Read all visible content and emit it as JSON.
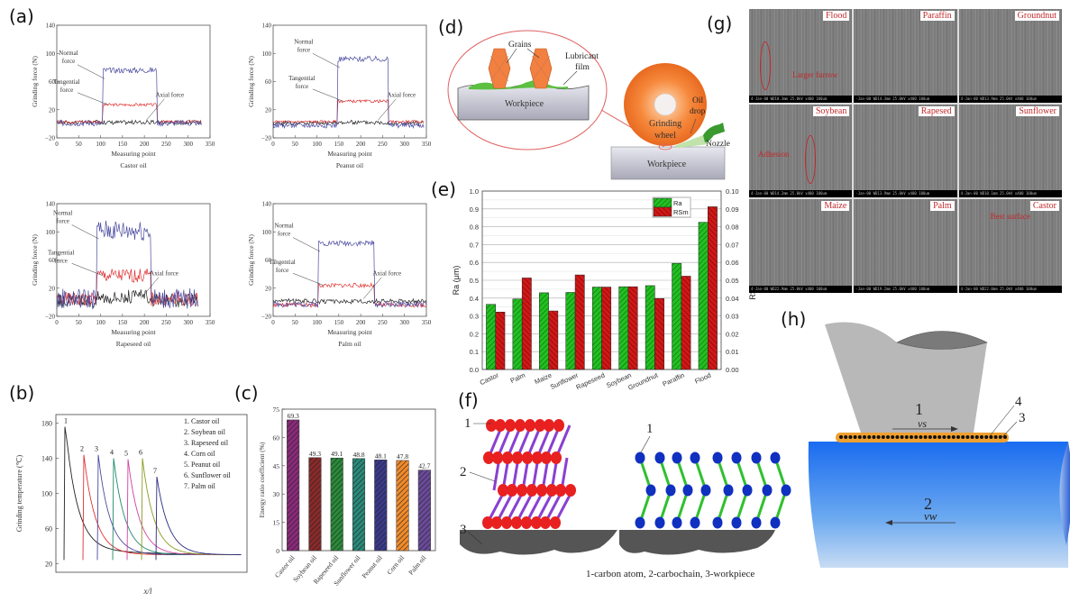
{
  "panels": {
    "a": "(a)",
    "b": "(b)",
    "c": "(c)",
    "d": "(d)",
    "e": "(e)",
    "f": "(f)",
    "g": "(g)",
    "h": "(h)"
  },
  "chart_data": [
    {
      "id": "a",
      "type": "line",
      "subplots": [
        {
          "caption": "Castor oil",
          "xlabel": "Measuring point",
          "ylabel": "Grinding force (N)",
          "xlim": [
            0,
            350
          ],
          "ylim": [
            -20,
            140
          ],
          "xticks": [
            0,
            50,
            100,
            150,
            200,
            250,
            300,
            350
          ],
          "yticks": [
            -20,
            20,
            60,
            100,
            140
          ],
          "plateau": [
            105,
            228
          ],
          "levels": {
            "normal": 76,
            "tangential": 27,
            "axial": 2
          },
          "baseline": {
            "normal": 1,
            "tangential": 3,
            "axial": 2
          },
          "noise": {
            "normal": 4,
            "tangential": 2,
            "axial": 3
          },
          "xmax_data": 330
        },
        {
          "caption": "Peanut oil",
          "xlabel": "Measuring point",
          "ylabel": "Grinding force (N)",
          "xlim": [
            0,
            350
          ],
          "ylim": [
            -20,
            140
          ],
          "xticks": [
            0,
            50,
            100,
            150,
            200,
            250,
            300,
            350
          ],
          "yticks": [
            -20,
            20,
            60,
            100,
            140
          ],
          "plateau": [
            148,
            263
          ],
          "levels": {
            "normal": 92,
            "tangential": 32,
            "axial": 2
          },
          "baseline": {
            "normal": -2,
            "tangential": 3,
            "axial": 1
          },
          "noise": {
            "normal": 4,
            "tangential": 2,
            "axial": 3
          },
          "xmax_data": 345
        },
        {
          "caption": "Rapeseed oil",
          "xlabel": "Measuring point",
          "ylabel": "Grinding force (N)",
          "xlim": [
            0,
            350
          ],
          "ylim": [
            -20,
            140
          ],
          "xticks": [
            0,
            50,
            100,
            150,
            200,
            250,
            300,
            350
          ],
          "yticks": [
            -20,
            20,
            60,
            100,
            140
          ],
          "plateau": [
            92,
            215
          ],
          "levels": {
            "normal": 102,
            "tangential": 38,
            "axial": 8
          },
          "baseline": {
            "normal": 5,
            "tangential": 4,
            "axial": 2
          },
          "noise": {
            "normal": 15,
            "tangential": 10,
            "axial": 10
          },
          "xmax_data": 322
        },
        {
          "caption": "Palm oil",
          "xlabel": "Measuring point",
          "ylabel": "Grinding force (N)",
          "xlim": [
            0,
            350
          ],
          "ylim": [
            -20,
            140
          ],
          "xticks": [
            0,
            50,
            100,
            150,
            200,
            250,
            300,
            350
          ],
          "yticks": [
            -20,
            20,
            60,
            100,
            140
          ],
          "plateau": [
            103,
            230
          ],
          "levels": {
            "normal": 84,
            "tangential": 24,
            "axial": 1
          },
          "baseline": {
            "normal": -3,
            "tangential": -4,
            "axial": 2
          },
          "noise": {
            "normal": 4,
            "tangential": 3,
            "axial": 3
          },
          "xmax_data": 350
        }
      ],
      "series_labels": {
        "normal": "Normal force",
        "normal_l1": "Normal",
        "normal_l2": "force",
        "normal_alt_l1": "Normal",
        "tangential_l1": "Tangential",
        "tangential_l2": "force",
        "axial": "Axial force"
      },
      "colors": {
        "normal": "#4a4aa0",
        "tangential": "#e03030",
        "axial": "#222222"
      }
    },
    {
      "id": "b",
      "type": "line",
      "xlabel": "x/l",
      "ylabel": "Grinding temperature (℃)",
      "ylim": [
        10,
        190
      ],
      "yticks": [
        20,
        60,
        100,
        140,
        180
      ],
      "series": [
        {
          "name": "1. Castor oil",
          "num": "1",
          "peak": 176,
          "color": "#222222"
        },
        {
          "name": "2. Soybean oil",
          "num": "2",
          "peak": 144,
          "color": "#e03030"
        },
        {
          "name": "3. Rapeseed oil",
          "num": "3",
          "peak": 144,
          "color": "#4a4aa0"
        },
        {
          "name": "4. Corn oil",
          "num": "4",
          "peak": 140,
          "color": "#1f8a6a"
        },
        {
          "name": "5. Peanut oil",
          "num": "5",
          "peak": 139,
          "color": "#d040a0"
        },
        {
          "name": "6. Sunflower oil",
          "num": "6",
          "peak": 140,
          "color": "#8a9a20"
        },
        {
          "name": "7. Palm oil",
          "num": "7",
          "peak": 119,
          "color": "#2a2a80"
        }
      ],
      "floor": 30
    },
    {
      "id": "c",
      "type": "bar",
      "ylabel": "Energy ratio coefficient (%)",
      "ylim": [
        0,
        75
      ],
      "yticks": [
        0,
        15,
        30,
        45,
        60,
        75
      ],
      "categories": [
        "Castor oil",
        "Soybean oil",
        "Rapeseed oil",
        "Sunflower oil",
        "Peanut oil",
        "Corn oil",
        "Palm oil"
      ],
      "values": [
        69.3,
        49.3,
        49.1,
        48.8,
        48.1,
        47.8,
        42.7
      ],
      "labels": [
        "69.3",
        "49.3",
        "49.1",
        "48.8",
        "48.1",
        "47.8",
        "42.7"
      ],
      "colors": [
        "#8a2a7a",
        "#8a2a2a",
        "#2a8a3a",
        "#2a8a7a",
        "#3a3a8a",
        "#f08a2a",
        "#6a4a9a"
      ]
    },
    {
      "id": "e",
      "type": "bar",
      "ylabel": "Ra (μm)",
      "ylabel2": "RSm (mm)",
      "ylim": [
        0,
        1.0
      ],
      "ylim2": [
        0,
        0.1
      ],
      "yticks": [
        "0.0",
        "0.1",
        "0.2",
        "0.3",
        "0.4",
        "0.5",
        "0.6",
        "0.7",
        "0.8",
        "0.9",
        "1.0"
      ],
      "yticks2": [
        "0.00",
        "0.01",
        "0.02",
        "0.03",
        "0.04",
        "0.05",
        "0.06",
        "0.07",
        "0.08",
        "0.09",
        "0.10"
      ],
      "categories": [
        "Castor",
        "Palm",
        "Maize",
        "Sunflower",
        "Rapeseed",
        "Soybean",
        "Groundnut",
        "Paraffin",
        "Flood"
      ],
      "series": [
        {
          "name": "Ra",
          "values": [
            0.365,
            0.395,
            0.43,
            0.432,
            0.462,
            0.464,
            0.47,
            0.595,
            0.825
          ],
          "color": "#22c022"
        },
        {
          "name": "RSm",
          "values": [
            0.0322,
            0.0513,
            0.0328,
            0.053,
            0.0462,
            0.0464,
            0.0398,
            0.0523,
            0.0912
          ],
          "color": "#d01818"
        }
      ],
      "legend": "top-right"
    }
  ],
  "diagram_d": {
    "grains": "Grains",
    "lubricant_l1": "Lubricant",
    "lubricant_l2": "film",
    "workpiece": "Workpiece",
    "workpiece2": "Workpiece",
    "wheel_l1": "Grinding",
    "wheel_l2": "wheel",
    "oil_l1": "Oil",
    "oil_l2": "drop",
    "nozzle": "Nozzle"
  },
  "diagram_f": {
    "n1": "1",
    "n2": "2",
    "n3": "3",
    "n1b": "1",
    "caption": "1-carbon atom, 2-carbochain, 3-workpiece"
  },
  "sem_g": {
    "images": [
      {
        "label": "Flood",
        "note": "Larger furrow",
        "bar": "4-Jan-00      WD18.3mm 25.0kV x400   100um"
      },
      {
        "label": "Paraffin",
        "bar": "-Jan-00        WD14.3mm 25.0kV x400   100um"
      },
      {
        "label": "Groundnut",
        "bar": "4-Jan-00      WD13.9mm 25.0kV x400   100um"
      },
      {
        "label": "Soybean",
        "note": "Adhesion",
        "bar": "4-Jan-00      WD14.2mm 25.0kV x400   100um"
      },
      {
        "label": "Rapesed",
        "bar": "-Jan-00        WD13.9mm 25.0kV x400   100um"
      },
      {
        "label": "Sunflower",
        "bar": "4-Jan-00      WD10.1mm 25.0kV x400   100um"
      },
      {
        "label": "Maize",
        "bar": "4-Jan-00      WD22.9mm 25.0kV x400   100um"
      },
      {
        "label": "Palm",
        "bar": "-Jan-00        WD19.2mm 25.0kV x400   100um"
      },
      {
        "label": "Castor",
        "note": "Best surface",
        "bar": "4-Jan-00      WD22.0mm 25.0kV x400   100um"
      }
    ]
  },
  "diagram_h": {
    "n1": "1",
    "vs": "vs",
    "n2": "2",
    "vw": "vw",
    "n3": "3",
    "n4": "4"
  }
}
